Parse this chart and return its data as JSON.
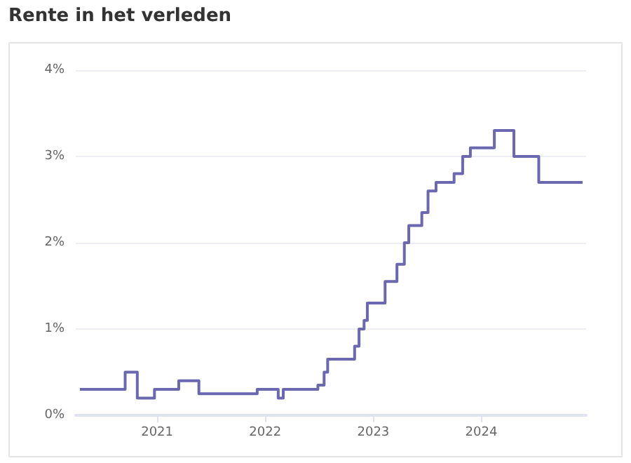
{
  "chart_data": {
    "type": "step",
    "title": "Rente in het verleden",
    "x": [
      "2020-04-15",
      "2020-09-15",
      "2020-10-26",
      "2020-12-23",
      "2021-03-15",
      "2021-05-22",
      "2021-12-05",
      "2022-02-14",
      "2022-03-03",
      "2022-06-28",
      "2022-07-19",
      "2022-07-31",
      "2022-10-30",
      "2022-11-14",
      "2022-12-01",
      "2022-12-12",
      "2023-02-10",
      "2023-03-22",
      "2023-04-16",
      "2023-05-01",
      "2023-06-14",
      "2023-07-05",
      "2023-08-01",
      "2023-10-01",
      "2023-10-30",
      "2023-11-25",
      "2024-02-14",
      "2024-04-20",
      "2024-07-13",
      "2024-12-08"
    ],
    "series": [
      {
        "color": "#6b68b0",
        "values": [
          0.3,
          0.5,
          0.2,
          0.3,
          0.4,
          0.25,
          0.3,
          0.2,
          0.3,
          0.35,
          0.5,
          0.65,
          0.8,
          1.0,
          1.1,
          1.3,
          1.55,
          1.75,
          2.0,
          2.2,
          2.35,
          2.6,
          2.7,
          2.8,
          3.0,
          3.1,
          3.3,
          3.0,
          2.7,
          2.7
        ]
      }
    ],
    "xlim": [
      "2020-04-01",
      "2024-12-20"
    ],
    "xticks": [
      "2021",
      "2022",
      "2023",
      "2024"
    ],
    "ylim": [
      0,
      4
    ],
    "yticks": [
      {
        "value": 0,
        "label": "0%"
      },
      {
        "value": 1,
        "label": "1%"
      },
      {
        "value": 2,
        "label": "2%"
      },
      {
        "value": 3,
        "label": "3%"
      },
      {
        "value": 4,
        "label": "4%"
      }
    ],
    "grid": "y",
    "marker": "none",
    "line_style": "solid"
  }
}
